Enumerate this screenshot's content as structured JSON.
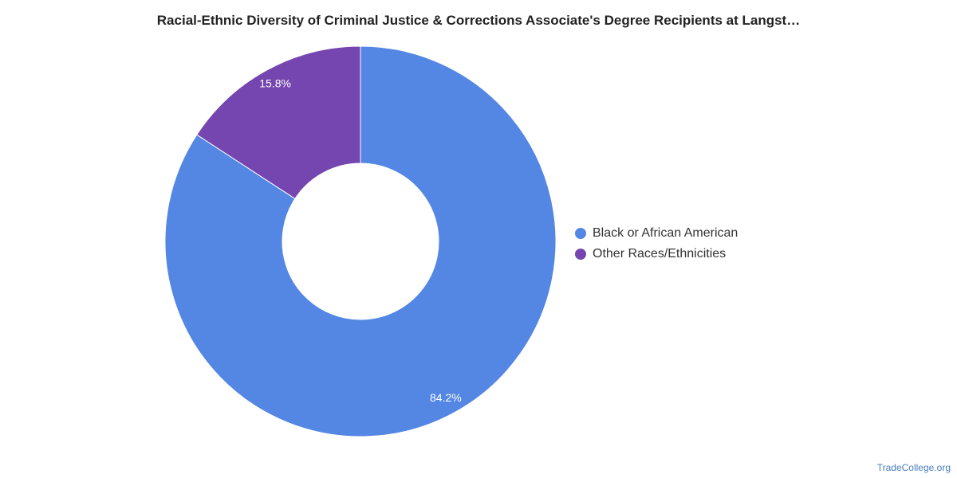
{
  "chart_data": {
    "type": "pie",
    "donut": true,
    "title": "Racial-Ethnic Diversity of Criminal Justice & Corrections Associate's Degree Recipients at Langst…",
    "slices": [
      {
        "label": "Black or African American",
        "value": 84.2,
        "value_label": "84.2%",
        "color": "#5487e3"
      },
      {
        "label": "Other Races/Ethnicities",
        "value": 15.8,
        "value_label": "15.8%",
        "color": "#7546b0"
      }
    ],
    "legend_position": "right"
  },
  "source": "TradeCollege.org"
}
